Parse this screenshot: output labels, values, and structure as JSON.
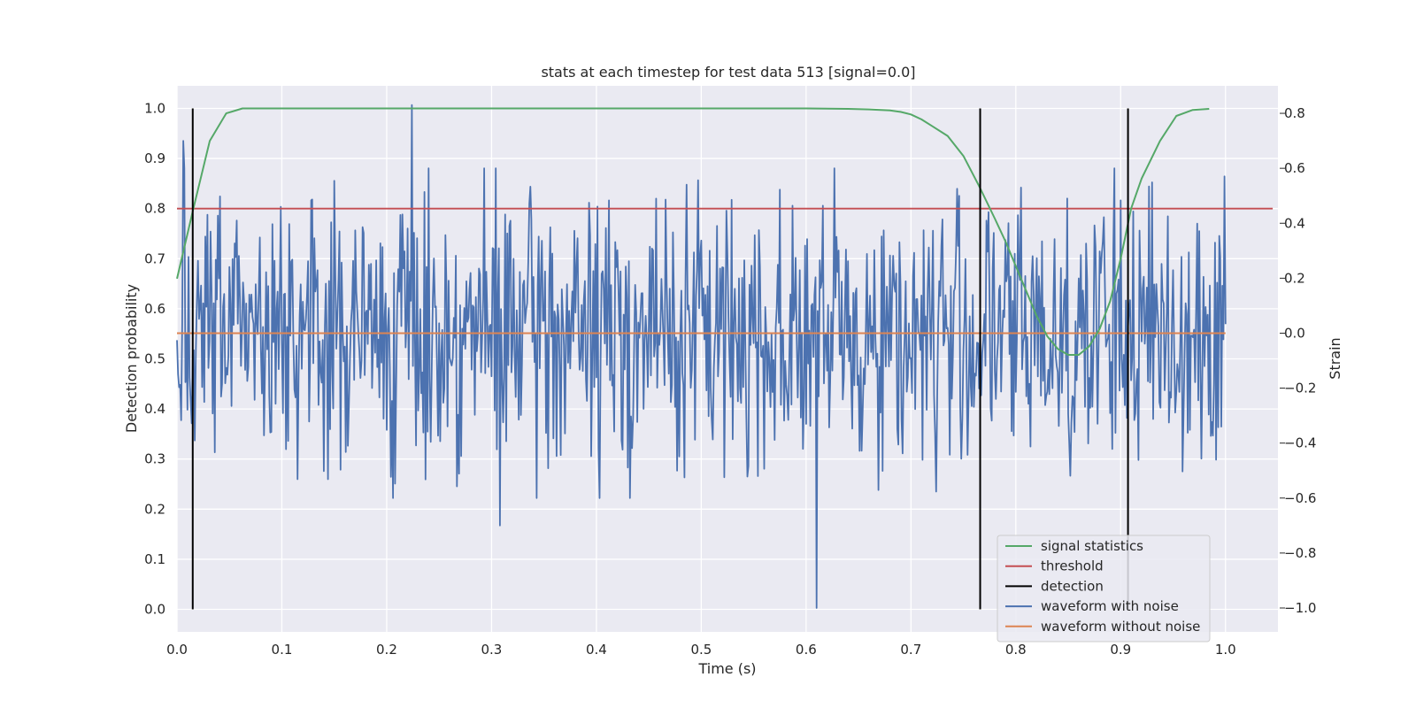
{
  "chart_data": {
    "type": "line",
    "title": "stats at each timestep for test data 513 [signal=0.0]",
    "xlabel": "Time (s)",
    "ylabel_left": "Detection probability",
    "ylabel_right": "Strain",
    "xlim": [
      0.0,
      1.05
    ],
    "ylim_left": [
      -0.045,
      1.045
    ],
    "ylim_right": [
      -1.087,
      0.9
    ],
    "x_ticks": [
      "0.0",
      "0.1",
      "0.2",
      "0.3",
      "0.4",
      "0.5",
      "0.6",
      "0.7",
      "0.8",
      "0.9",
      "1.0"
    ],
    "y_ticks_left": [
      "0.0",
      "0.1",
      "0.2",
      "0.3",
      "0.4",
      "0.5",
      "0.6",
      "0.7",
      "0.8",
      "0.9",
      "1.0"
    ],
    "y_ticks_right": [
      "−1.0",
      "−0.8",
      "−0.6",
      "−0.4",
      "−0.2",
      "0.0",
      "0.2",
      "0.4",
      "0.6",
      "0.8"
    ],
    "y_ticks_right_values": [
      -1.0,
      -0.8,
      -0.6,
      -0.4,
      -0.2,
      0.0,
      0.2,
      0.4,
      0.6,
      0.8
    ],
    "grid": true,
    "legend_position": "bottom-right",
    "background": "#eaeaf2",
    "series": [
      {
        "name": "signal statistics",
        "axis": "left",
        "color": "#55a868",
        "x": [
          0.0,
          0.0156,
          0.0312,
          0.0469,
          0.0625,
          0.0781,
          0.1,
          0.2,
          0.3,
          0.4,
          0.5,
          0.6,
          0.64,
          0.66,
          0.68,
          0.69,
          0.7,
          0.71,
          0.72,
          0.735,
          0.75,
          0.765,
          0.78,
          0.79,
          0.8,
          0.81,
          0.82,
          0.83,
          0.84,
          0.85,
          0.86,
          0.87,
          0.88,
          0.89,
          0.9,
          0.905,
          0.91,
          0.92,
          0.9375,
          0.9531,
          0.9688,
          0.9844
        ],
        "y": [
          0.66,
          0.8,
          0.935,
          0.99,
          1.0,
          1.0,
          1.0,
          1.0,
          1.0,
          1.0,
          1.0,
          1.0,
          0.999,
          0.998,
          0.996,
          0.993,
          0.988,
          0.978,
          0.965,
          0.945,
          0.905,
          0.845,
          0.78,
          0.735,
          0.685,
          0.635,
          0.585,
          0.545,
          0.52,
          0.508,
          0.508,
          0.525,
          0.56,
          0.615,
          0.7,
          0.75,
          0.8,
          0.86,
          0.935,
          0.985,
          0.997,
          0.999
        ]
      },
      {
        "name": "threshold",
        "axis": "left",
        "color": "#c44e52",
        "x": [
          0.0,
          1.045
        ],
        "y": [
          0.8,
          0.8
        ]
      },
      {
        "name": "detection",
        "axis": "left",
        "color": "#000000",
        "x": [
          0.015,
          0.766,
          0.907
        ],
        "y_range": [
          0.0,
          1.0
        ]
      },
      {
        "name": "waveform with noise",
        "axis": "right",
        "color": "#4c72b0",
        "x_range": [
          0.0,
          1.0
        ],
        "notable_points": [
          {
            "x": 0.224,
            "y": 0.83
          },
          {
            "x": 0.61,
            "y": -1.0
          },
          {
            "x": 0.308,
            "y": -0.7
          },
          {
            "x": 0.006,
            "y": 0.7
          }
        ]
      },
      {
        "name": "waveform without noise",
        "axis": "right",
        "color": "#dd8452",
        "x": [
          0.0,
          1.0
        ],
        "y": [
          0.0,
          0.0
        ]
      }
    ]
  }
}
